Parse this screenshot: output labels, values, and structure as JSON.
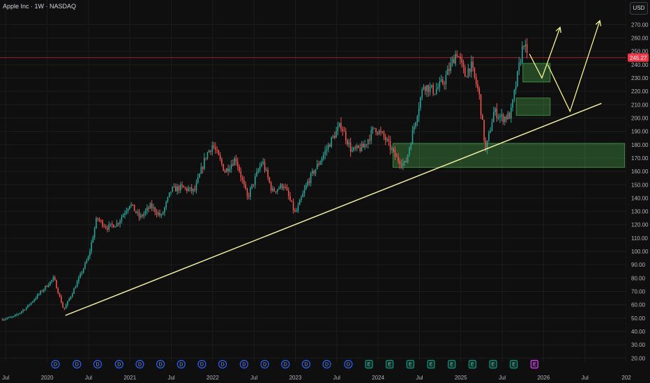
{
  "header": {
    "symbol_title": "Apple Inc · 1W · NASDAQ",
    "currency": "USD"
  },
  "chart_data": {
    "type": "candlestick",
    "symbol": "Apple Inc",
    "interval": "1W",
    "exchange": "NASDAQ",
    "currency": "USD",
    "last_price": 245.27,
    "ylim": [
      17,
      277
    ],
    "y_ticks": [
      20,
      30,
      40,
      50,
      60,
      70,
      80,
      90,
      100,
      110,
      120,
      130,
      140,
      150,
      160,
      170,
      180,
      190,
      200,
      210,
      220,
      230,
      240,
      250,
      260,
      270
    ],
    "x_ticks": [
      {
        "label": "Jul",
        "t": 2019.5
      },
      {
        "label": "2020",
        "t": 2020.0
      },
      {
        "label": "Jul",
        "t": 2020.5
      },
      {
        "label": "2021",
        "t": 2021.0
      },
      {
        "label": "Jul",
        "t": 2021.5
      },
      {
        "label": "2022",
        "t": 2022.0
      },
      {
        "label": "Jul",
        "t": 2022.5
      },
      {
        "label": "2023",
        "t": 2023.0
      },
      {
        "label": "Jul",
        "t": 2023.5
      },
      {
        "label": "2024",
        "t": 2024.0
      },
      {
        "label": "Jul",
        "t": 2024.5
      },
      {
        "label": "2025",
        "t": 2025.0
      },
      {
        "label": "Jul",
        "t": 2025.5
      },
      {
        "label": "2026",
        "t": 2026.0
      },
      {
        "label": "Jul",
        "t": 2026.5
      },
      {
        "label": "202",
        "t": 2027.0
      }
    ],
    "price_path": [
      [
        2019.44,
        49
      ],
      [
        2019.6,
        51
      ],
      [
        2019.75,
        58
      ],
      [
        2019.9,
        68
      ],
      [
        2020.08,
        80
      ],
      [
        2020.2,
        56
      ],
      [
        2020.35,
        75
      ],
      [
        2020.5,
        96
      ],
      [
        2020.6,
        125
      ],
      [
        2020.72,
        118
      ],
      [
        2020.85,
        121
      ],
      [
        2021.0,
        136
      ],
      [
        2021.12,
        125
      ],
      [
        2021.25,
        134
      ],
      [
        2021.38,
        126
      ],
      [
        2021.5,
        146
      ],
      [
        2021.62,
        148
      ],
      [
        2021.78,
        145
      ],
      [
        2021.92,
        172
      ],
      [
        2022.0,
        180
      ],
      [
        2022.15,
        160
      ],
      [
        2022.28,
        170
      ],
      [
        2022.42,
        140
      ],
      [
        2022.6,
        168
      ],
      [
        2022.72,
        145
      ],
      [
        2022.86,
        150
      ],
      [
        2023.0,
        128
      ],
      [
        2023.15,
        152
      ],
      [
        2023.3,
        168
      ],
      [
        2023.45,
        185
      ],
      [
        2023.55,
        195
      ],
      [
        2023.68,
        175
      ],
      [
        2023.82,
        178
      ],
      [
        2023.96,
        193
      ],
      [
        2024.08,
        185
      ],
      [
        2024.22,
        170
      ],
      [
        2024.33,
        165
      ],
      [
        2024.45,
        198
      ],
      [
        2024.55,
        225
      ],
      [
        2024.68,
        220
      ],
      [
        2024.8,
        228
      ],
      [
        2024.95,
        250
      ],
      [
        2025.05,
        232
      ],
      [
        2025.12,
        240
      ],
      [
        2025.22,
        218
      ],
      [
        2025.3,
        175
      ],
      [
        2025.4,
        205
      ],
      [
        2025.5,
        200
      ],
      [
        2025.6,
        202
      ],
      [
        2025.68,
        230
      ],
      [
        2025.76,
        258
      ],
      [
        2025.8,
        245.27
      ]
    ],
    "annotations": {
      "trendline": {
        "from": [
          2020.22,
          52
        ],
        "to": [
          2026.7,
          211
        ],
        "color": "#f0eea0"
      },
      "zones": [
        {
          "t0": 2024.18,
          "t1": 2026.98,
          "low": 163,
          "high": 181
        },
        {
          "t0": 2025.75,
          "t1": 2026.08,
          "low": 227,
          "high": 241
        },
        {
          "t0": 2025.67,
          "t1": 2026.08,
          "low": 202,
          "high": 215
        }
      ],
      "projections": [
        {
          "path": [
            [
              2025.83,
              248
            ],
            [
              2025.98,
              230
            ],
            [
              2026.2,
              268
            ]
          ]
        },
        {
          "path": [
            [
              2026.05,
              240
            ],
            [
              2026.32,
              205
            ],
            [
              2026.68,
              273
            ]
          ]
        }
      ]
    },
    "event_markers": [
      {
        "label": "D",
        "t": 2020.1
      },
      {
        "label": "D",
        "t": 2020.36
      },
      {
        "label": "D",
        "t": 2020.61
      },
      {
        "label": "D",
        "t": 2020.87
      },
      {
        "label": "D",
        "t": 2021.12
      },
      {
        "label": "D",
        "t": 2021.37
      },
      {
        "label": "D",
        "t": 2021.62
      },
      {
        "label": "D",
        "t": 2021.87
      },
      {
        "label": "D",
        "t": 2022.12
      },
      {
        "label": "D",
        "t": 2022.38
      },
      {
        "label": "D",
        "t": 2022.63
      },
      {
        "label": "D",
        "t": 2022.88
      },
      {
        "label": "D",
        "t": 2023.13
      },
      {
        "label": "D",
        "t": 2023.38
      },
      {
        "label": "D",
        "t": 2023.64
      },
      {
        "label": "E",
        "t": 2023.89
      },
      {
        "label": "E",
        "t": 2024.14
      },
      {
        "label": "E",
        "t": 2024.39
      },
      {
        "label": "E",
        "t": 2024.64
      },
      {
        "label": "E",
        "t": 2024.89
      },
      {
        "label": "E",
        "t": 2025.14
      },
      {
        "label": "E",
        "t": 2025.39
      },
      {
        "label": "E",
        "t": 2025.64
      },
      {
        "label": "E",
        "t": 2025.89,
        "upcoming": true
      }
    ],
    "colors": {
      "up": "#26a69a",
      "down": "#ef5350",
      "last_price_tag": "#f23645",
      "zone_fill": "#4caf50",
      "projection": "#f5f58a",
      "dividend_marker": "#2962ff",
      "earnings_marker": "#089981",
      "upcoming_marker": "#e040fb",
      "grid": "#1c1c1c",
      "background": "#0f0f0f"
    },
    "grid": true
  }
}
